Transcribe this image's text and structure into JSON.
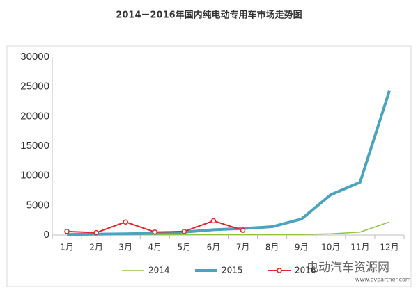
{
  "chart_data": {
    "type": "line",
    "title": "2014－2016年国内纯电动专用车市场走势图",
    "categories": [
      "1月",
      "2月",
      "3月",
      "4月",
      "5月",
      "6月",
      "7月",
      "8月",
      "9月",
      "10月",
      "11月",
      "12月"
    ],
    "series": [
      {
        "name": "2014",
        "color": "#8dc63f",
        "width": 1.5,
        "markers": false,
        "values": [
          50,
          50,
          50,
          60,
          60,
          70,
          80,
          80,
          100,
          200,
          500,
          2200
        ]
      },
      {
        "name": "2015",
        "color": "#4aa3c0",
        "width": 4,
        "markers": false,
        "values": [
          100,
          150,
          200,
          300,
          500,
          900,
          1100,
          1400,
          2700,
          6800,
          8900,
          24300
        ]
      },
      {
        "name": "2016",
        "color": "#e0262b",
        "width": 2,
        "markers": true,
        "values": [
          600,
          400,
          2200,
          500,
          600,
          2400,
          800,
          null,
          null,
          null,
          null,
          null
        ]
      }
    ],
    "ylim": [
      0,
      30000
    ],
    "yticks": [
      0,
      5000,
      10000,
      15000,
      20000,
      25000,
      30000
    ],
    "watermark": "电动汽车资源网",
    "watermark_url": "www.evpartner.com"
  }
}
